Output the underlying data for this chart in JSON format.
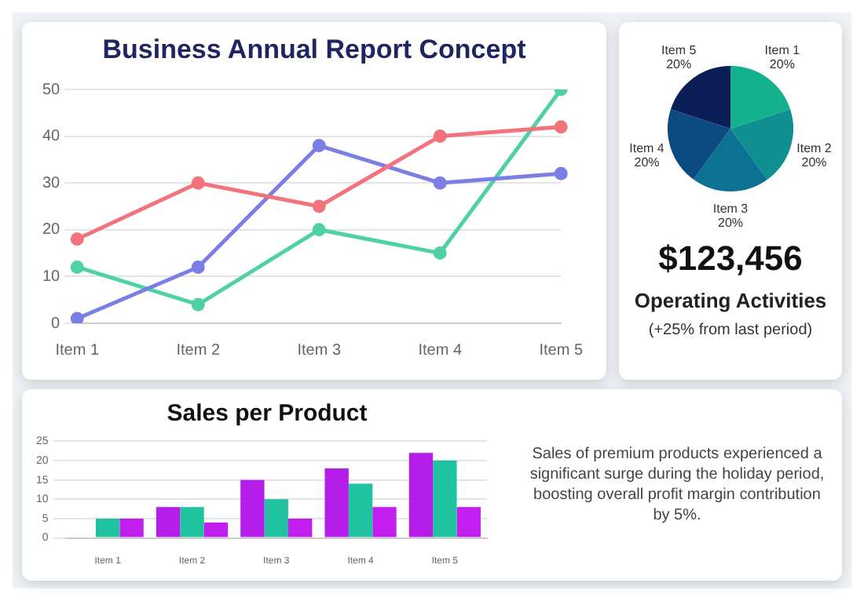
{
  "chart_data": [
    {
      "type": "line",
      "title": "Business Annual Report Concept",
      "categories": [
        "Item 1",
        "Item 2",
        "Item 3",
        "Item 4",
        "Item 5"
      ],
      "series": [
        {
          "color": "#f2737b",
          "values": [
            18,
            30,
            25,
            40,
            42
          ]
        },
        {
          "color": "#7b7ee3",
          "values": [
            1,
            12,
            38,
            30,
            32
          ]
        },
        {
          "color": "#4fd1a5",
          "values": [
            12,
            4,
            20,
            15,
            50
          ]
        }
      ],
      "ylim": [
        0,
        50
      ],
      "yticks": [
        0,
        10,
        20,
        30,
        40,
        50
      ],
      "grid": "y",
      "marker": "circle",
      "line_style": "solid"
    },
    {
      "type": "bar",
      "title": "Sales per Product",
      "categories": [
        "Item 1",
        "Item 2",
        "Item 3",
        "Item 4",
        "Item 5"
      ],
      "series": [
        {
          "color": "#b41ee8",
          "values": [
            null,
            8,
            15,
            18,
            22
          ]
        },
        {
          "color": "#1fc3a0",
          "values": [
            5,
            8,
            10,
            14,
            20
          ]
        },
        {
          "color": "#c21ef0",
          "values": [
            5,
            4,
            5,
            8,
            8
          ]
        }
      ],
      "ylim": [
        0,
        25
      ],
      "yticks": [
        0,
        5,
        10,
        15,
        20,
        25
      ],
      "grid": "y",
      "annotations": [
        "Sales of premium products experienced a significant surge during the holiday period, boosting overall profit margin contribution by 5%."
      ]
    },
    {
      "type": "pie",
      "categories": [
        "Item 1",
        "Item 2",
        "Item 3",
        "Item 4",
        "Item 5"
      ],
      "values": [
        20,
        20,
        20,
        20,
        20
      ],
      "value_labels": [
        "20%",
        "20%",
        "20%",
        "20%",
        "20%"
      ],
      "colors": [
        "#14b18f",
        "#0f8f90",
        "#0c7294",
        "#0c4a82",
        "#0b1f56"
      ],
      "annotations": [
        "$123,456",
        "Operating Activities",
        "(+25% from last period)"
      ]
    }
  ]
}
